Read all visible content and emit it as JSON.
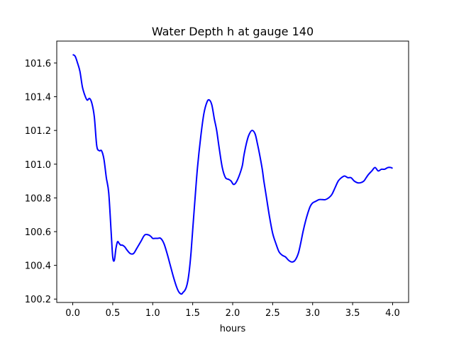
{
  "chart_data": {
    "type": "line",
    "title": "Water Depth h at gauge 140",
    "xlabel": "hours",
    "ylabel": "",
    "xlim": [
      -0.2,
      4.2
    ],
    "ylim": [
      100.18,
      101.73
    ],
    "xticks": [
      0.0,
      0.5,
      1.0,
      1.5,
      2.0,
      2.5,
      3.0,
      3.5,
      4.0
    ],
    "xtick_labels": [
      "0.0",
      "0.5",
      "1.0",
      "1.5",
      "2.0",
      "2.5",
      "3.0",
      "3.5",
      "4.0"
    ],
    "yticks": [
      100.2,
      100.4,
      100.6,
      100.8,
      101.0,
      101.2,
      101.4,
      101.6
    ],
    "ytick_labels": [
      "100.2",
      "100.4",
      "100.6",
      "100.8",
      "101.0",
      "101.2",
      "101.4",
      "101.6"
    ],
    "grid": false,
    "line_color": "#0000ff",
    "series": [
      {
        "x": [
          0.0,
          0.03,
          0.06,
          0.09,
          0.12,
          0.15,
          0.18,
          0.21,
          0.24,
          0.27,
          0.3,
          0.33,
          0.36,
          0.39,
          0.42,
          0.45,
          0.48,
          0.5,
          0.52,
          0.54,
          0.56,
          0.58,
          0.6,
          0.62,
          0.65,
          0.68,
          0.72,
          0.76,
          0.8,
          0.85,
          0.9,
          0.95,
          0.98,
          1.0,
          1.03,
          1.06,
          1.1,
          1.14,
          1.18,
          1.22,
          1.26,
          1.3,
          1.33,
          1.36,
          1.38,
          1.4,
          1.42,
          1.44,
          1.46,
          1.48,
          1.5,
          1.53,
          1.56,
          1.6,
          1.64,
          1.68,
          1.71,
          1.74,
          1.77,
          1.8,
          1.83,
          1.87,
          1.91,
          1.95,
          1.98,
          2.01,
          2.04,
          2.08,
          2.12,
          2.14,
          2.17,
          2.2,
          2.24,
          2.28,
          2.31,
          2.34,
          2.37,
          2.39,
          2.42,
          2.46,
          2.5,
          2.54,
          2.58,
          2.62,
          2.66,
          2.7,
          2.74,
          2.78,
          2.82,
          2.85,
          2.88,
          2.91,
          2.94,
          2.97,
          3.0,
          3.04,
          3.08,
          3.12,
          3.16,
          3.2,
          3.24,
          3.28,
          3.32,
          3.36,
          3.4,
          3.44,
          3.48,
          3.52,
          3.56,
          3.6,
          3.64,
          3.67,
          3.7,
          3.74,
          3.78,
          3.82,
          3.86,
          3.9,
          3.94,
          3.98,
          4.0
        ],
        "y": [
          101.65,
          101.64,
          101.6,
          101.55,
          101.46,
          101.41,
          101.38,
          101.39,
          101.36,
          101.28,
          101.11,
          101.08,
          101.08,
          101.03,
          100.92,
          100.83,
          100.6,
          100.45,
          100.43,
          100.5,
          100.54,
          100.53,
          100.52,
          100.52,
          100.51,
          100.49,
          100.47,
          100.47,
          100.5,
          100.54,
          100.58,
          100.58,
          100.57,
          100.56,
          100.56,
          100.56,
          100.56,
          100.53,
          100.47,
          100.4,
          100.33,
          100.27,
          100.24,
          100.23,
          100.24,
          100.25,
          100.27,
          100.31,
          100.38,
          100.48,
          100.61,
          100.8,
          100.98,
          101.16,
          101.3,
          101.37,
          101.38,
          101.35,
          101.27,
          101.2,
          101.1,
          100.98,
          100.92,
          100.91,
          100.9,
          100.88,
          100.89,
          100.93,
          100.99,
          101.05,
          101.12,
          101.17,
          101.2,
          101.18,
          101.12,
          101.05,
          100.97,
          100.9,
          100.81,
          100.69,
          100.59,
          100.53,
          100.48,
          100.46,
          100.45,
          100.43,
          100.42,
          100.43,
          100.47,
          100.53,
          100.6,
          100.66,
          100.71,
          100.75,
          100.77,
          100.78,
          100.79,
          100.79,
          100.79,
          100.8,
          100.82,
          100.86,
          100.9,
          100.92,
          100.93,
          100.92,
          100.92,
          100.9,
          100.89,
          100.89,
          100.9,
          100.92,
          100.94,
          100.96,
          100.98,
          100.96,
          100.97,
          100.97,
          100.98,
          100.98,
          100.975
        ]
      }
    ]
  }
}
